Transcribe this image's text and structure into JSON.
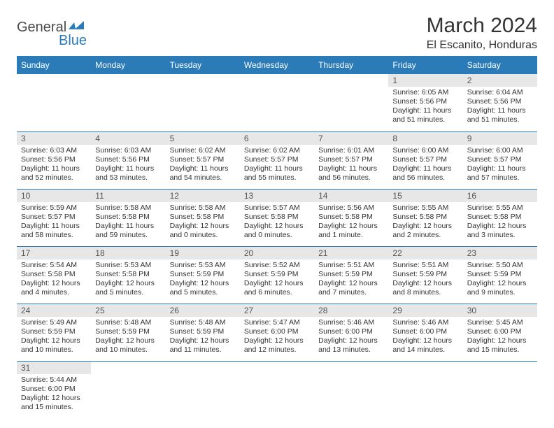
{
  "brand": {
    "part1": "General",
    "part2": "Blue"
  },
  "title": "March 2024",
  "location": "El Escanito, Honduras",
  "colors": {
    "header_bg": "#2b7bb9",
    "header_text": "#ffffff",
    "daynum_bg": "#e7e7e7",
    "row_border": "#2b7bb9",
    "body_text": "#333333",
    "logo_gray": "#4a4a4a",
    "logo_blue": "#2b7bb9"
  },
  "weekdays": [
    "Sunday",
    "Monday",
    "Tuesday",
    "Wednesday",
    "Thursday",
    "Friday",
    "Saturday"
  ],
  "weeks": [
    [
      {
        "n": "",
        "sunrise": "",
        "sunset": "",
        "daylight": ""
      },
      {
        "n": "",
        "sunrise": "",
        "sunset": "",
        "daylight": ""
      },
      {
        "n": "",
        "sunrise": "",
        "sunset": "",
        "daylight": ""
      },
      {
        "n": "",
        "sunrise": "",
        "sunset": "",
        "daylight": ""
      },
      {
        "n": "",
        "sunrise": "",
        "sunset": "",
        "daylight": ""
      },
      {
        "n": "1",
        "sunrise": "Sunrise: 6:05 AM",
        "sunset": "Sunset: 5:56 PM",
        "daylight": "Daylight: 11 hours and 51 minutes."
      },
      {
        "n": "2",
        "sunrise": "Sunrise: 6:04 AM",
        "sunset": "Sunset: 5:56 PM",
        "daylight": "Daylight: 11 hours and 51 minutes."
      }
    ],
    [
      {
        "n": "3",
        "sunrise": "Sunrise: 6:03 AM",
        "sunset": "Sunset: 5:56 PM",
        "daylight": "Daylight: 11 hours and 52 minutes."
      },
      {
        "n": "4",
        "sunrise": "Sunrise: 6:03 AM",
        "sunset": "Sunset: 5:56 PM",
        "daylight": "Daylight: 11 hours and 53 minutes."
      },
      {
        "n": "5",
        "sunrise": "Sunrise: 6:02 AM",
        "sunset": "Sunset: 5:57 PM",
        "daylight": "Daylight: 11 hours and 54 minutes."
      },
      {
        "n": "6",
        "sunrise": "Sunrise: 6:02 AM",
        "sunset": "Sunset: 5:57 PM",
        "daylight": "Daylight: 11 hours and 55 minutes."
      },
      {
        "n": "7",
        "sunrise": "Sunrise: 6:01 AM",
        "sunset": "Sunset: 5:57 PM",
        "daylight": "Daylight: 11 hours and 56 minutes."
      },
      {
        "n": "8",
        "sunrise": "Sunrise: 6:00 AM",
        "sunset": "Sunset: 5:57 PM",
        "daylight": "Daylight: 11 hours and 56 minutes."
      },
      {
        "n": "9",
        "sunrise": "Sunrise: 6:00 AM",
        "sunset": "Sunset: 5:57 PM",
        "daylight": "Daylight: 11 hours and 57 minutes."
      }
    ],
    [
      {
        "n": "10",
        "sunrise": "Sunrise: 5:59 AM",
        "sunset": "Sunset: 5:57 PM",
        "daylight": "Daylight: 11 hours and 58 minutes."
      },
      {
        "n": "11",
        "sunrise": "Sunrise: 5:58 AM",
        "sunset": "Sunset: 5:58 PM",
        "daylight": "Daylight: 11 hours and 59 minutes."
      },
      {
        "n": "12",
        "sunrise": "Sunrise: 5:58 AM",
        "sunset": "Sunset: 5:58 PM",
        "daylight": "Daylight: 12 hours and 0 minutes."
      },
      {
        "n": "13",
        "sunrise": "Sunrise: 5:57 AM",
        "sunset": "Sunset: 5:58 PM",
        "daylight": "Daylight: 12 hours and 0 minutes."
      },
      {
        "n": "14",
        "sunrise": "Sunrise: 5:56 AM",
        "sunset": "Sunset: 5:58 PM",
        "daylight": "Daylight: 12 hours and 1 minute."
      },
      {
        "n": "15",
        "sunrise": "Sunrise: 5:55 AM",
        "sunset": "Sunset: 5:58 PM",
        "daylight": "Daylight: 12 hours and 2 minutes."
      },
      {
        "n": "16",
        "sunrise": "Sunrise: 5:55 AM",
        "sunset": "Sunset: 5:58 PM",
        "daylight": "Daylight: 12 hours and 3 minutes."
      }
    ],
    [
      {
        "n": "17",
        "sunrise": "Sunrise: 5:54 AM",
        "sunset": "Sunset: 5:58 PM",
        "daylight": "Daylight: 12 hours and 4 minutes."
      },
      {
        "n": "18",
        "sunrise": "Sunrise: 5:53 AM",
        "sunset": "Sunset: 5:58 PM",
        "daylight": "Daylight: 12 hours and 5 minutes."
      },
      {
        "n": "19",
        "sunrise": "Sunrise: 5:53 AM",
        "sunset": "Sunset: 5:59 PM",
        "daylight": "Daylight: 12 hours and 5 minutes."
      },
      {
        "n": "20",
        "sunrise": "Sunrise: 5:52 AM",
        "sunset": "Sunset: 5:59 PM",
        "daylight": "Daylight: 12 hours and 6 minutes."
      },
      {
        "n": "21",
        "sunrise": "Sunrise: 5:51 AM",
        "sunset": "Sunset: 5:59 PM",
        "daylight": "Daylight: 12 hours and 7 minutes."
      },
      {
        "n": "22",
        "sunrise": "Sunrise: 5:51 AM",
        "sunset": "Sunset: 5:59 PM",
        "daylight": "Daylight: 12 hours and 8 minutes."
      },
      {
        "n": "23",
        "sunrise": "Sunrise: 5:50 AM",
        "sunset": "Sunset: 5:59 PM",
        "daylight": "Daylight: 12 hours and 9 minutes."
      }
    ],
    [
      {
        "n": "24",
        "sunrise": "Sunrise: 5:49 AM",
        "sunset": "Sunset: 5:59 PM",
        "daylight": "Daylight: 12 hours and 10 minutes."
      },
      {
        "n": "25",
        "sunrise": "Sunrise: 5:48 AM",
        "sunset": "Sunset: 5:59 PM",
        "daylight": "Daylight: 12 hours and 10 minutes."
      },
      {
        "n": "26",
        "sunrise": "Sunrise: 5:48 AM",
        "sunset": "Sunset: 5:59 PM",
        "daylight": "Daylight: 12 hours and 11 minutes."
      },
      {
        "n": "27",
        "sunrise": "Sunrise: 5:47 AM",
        "sunset": "Sunset: 6:00 PM",
        "daylight": "Daylight: 12 hours and 12 minutes."
      },
      {
        "n": "28",
        "sunrise": "Sunrise: 5:46 AM",
        "sunset": "Sunset: 6:00 PM",
        "daylight": "Daylight: 12 hours and 13 minutes."
      },
      {
        "n": "29",
        "sunrise": "Sunrise: 5:46 AM",
        "sunset": "Sunset: 6:00 PM",
        "daylight": "Daylight: 12 hours and 14 minutes."
      },
      {
        "n": "30",
        "sunrise": "Sunrise: 5:45 AM",
        "sunset": "Sunset: 6:00 PM",
        "daylight": "Daylight: 12 hours and 15 minutes."
      }
    ],
    [
      {
        "n": "31",
        "sunrise": "Sunrise: 5:44 AM",
        "sunset": "Sunset: 6:00 PM",
        "daylight": "Daylight: 12 hours and 15 minutes."
      },
      {
        "n": "",
        "sunrise": "",
        "sunset": "",
        "daylight": ""
      },
      {
        "n": "",
        "sunrise": "",
        "sunset": "",
        "daylight": ""
      },
      {
        "n": "",
        "sunrise": "",
        "sunset": "",
        "daylight": ""
      },
      {
        "n": "",
        "sunrise": "",
        "sunset": "",
        "daylight": ""
      },
      {
        "n": "",
        "sunrise": "",
        "sunset": "",
        "daylight": ""
      },
      {
        "n": "",
        "sunrise": "",
        "sunset": "",
        "daylight": ""
      }
    ]
  ]
}
